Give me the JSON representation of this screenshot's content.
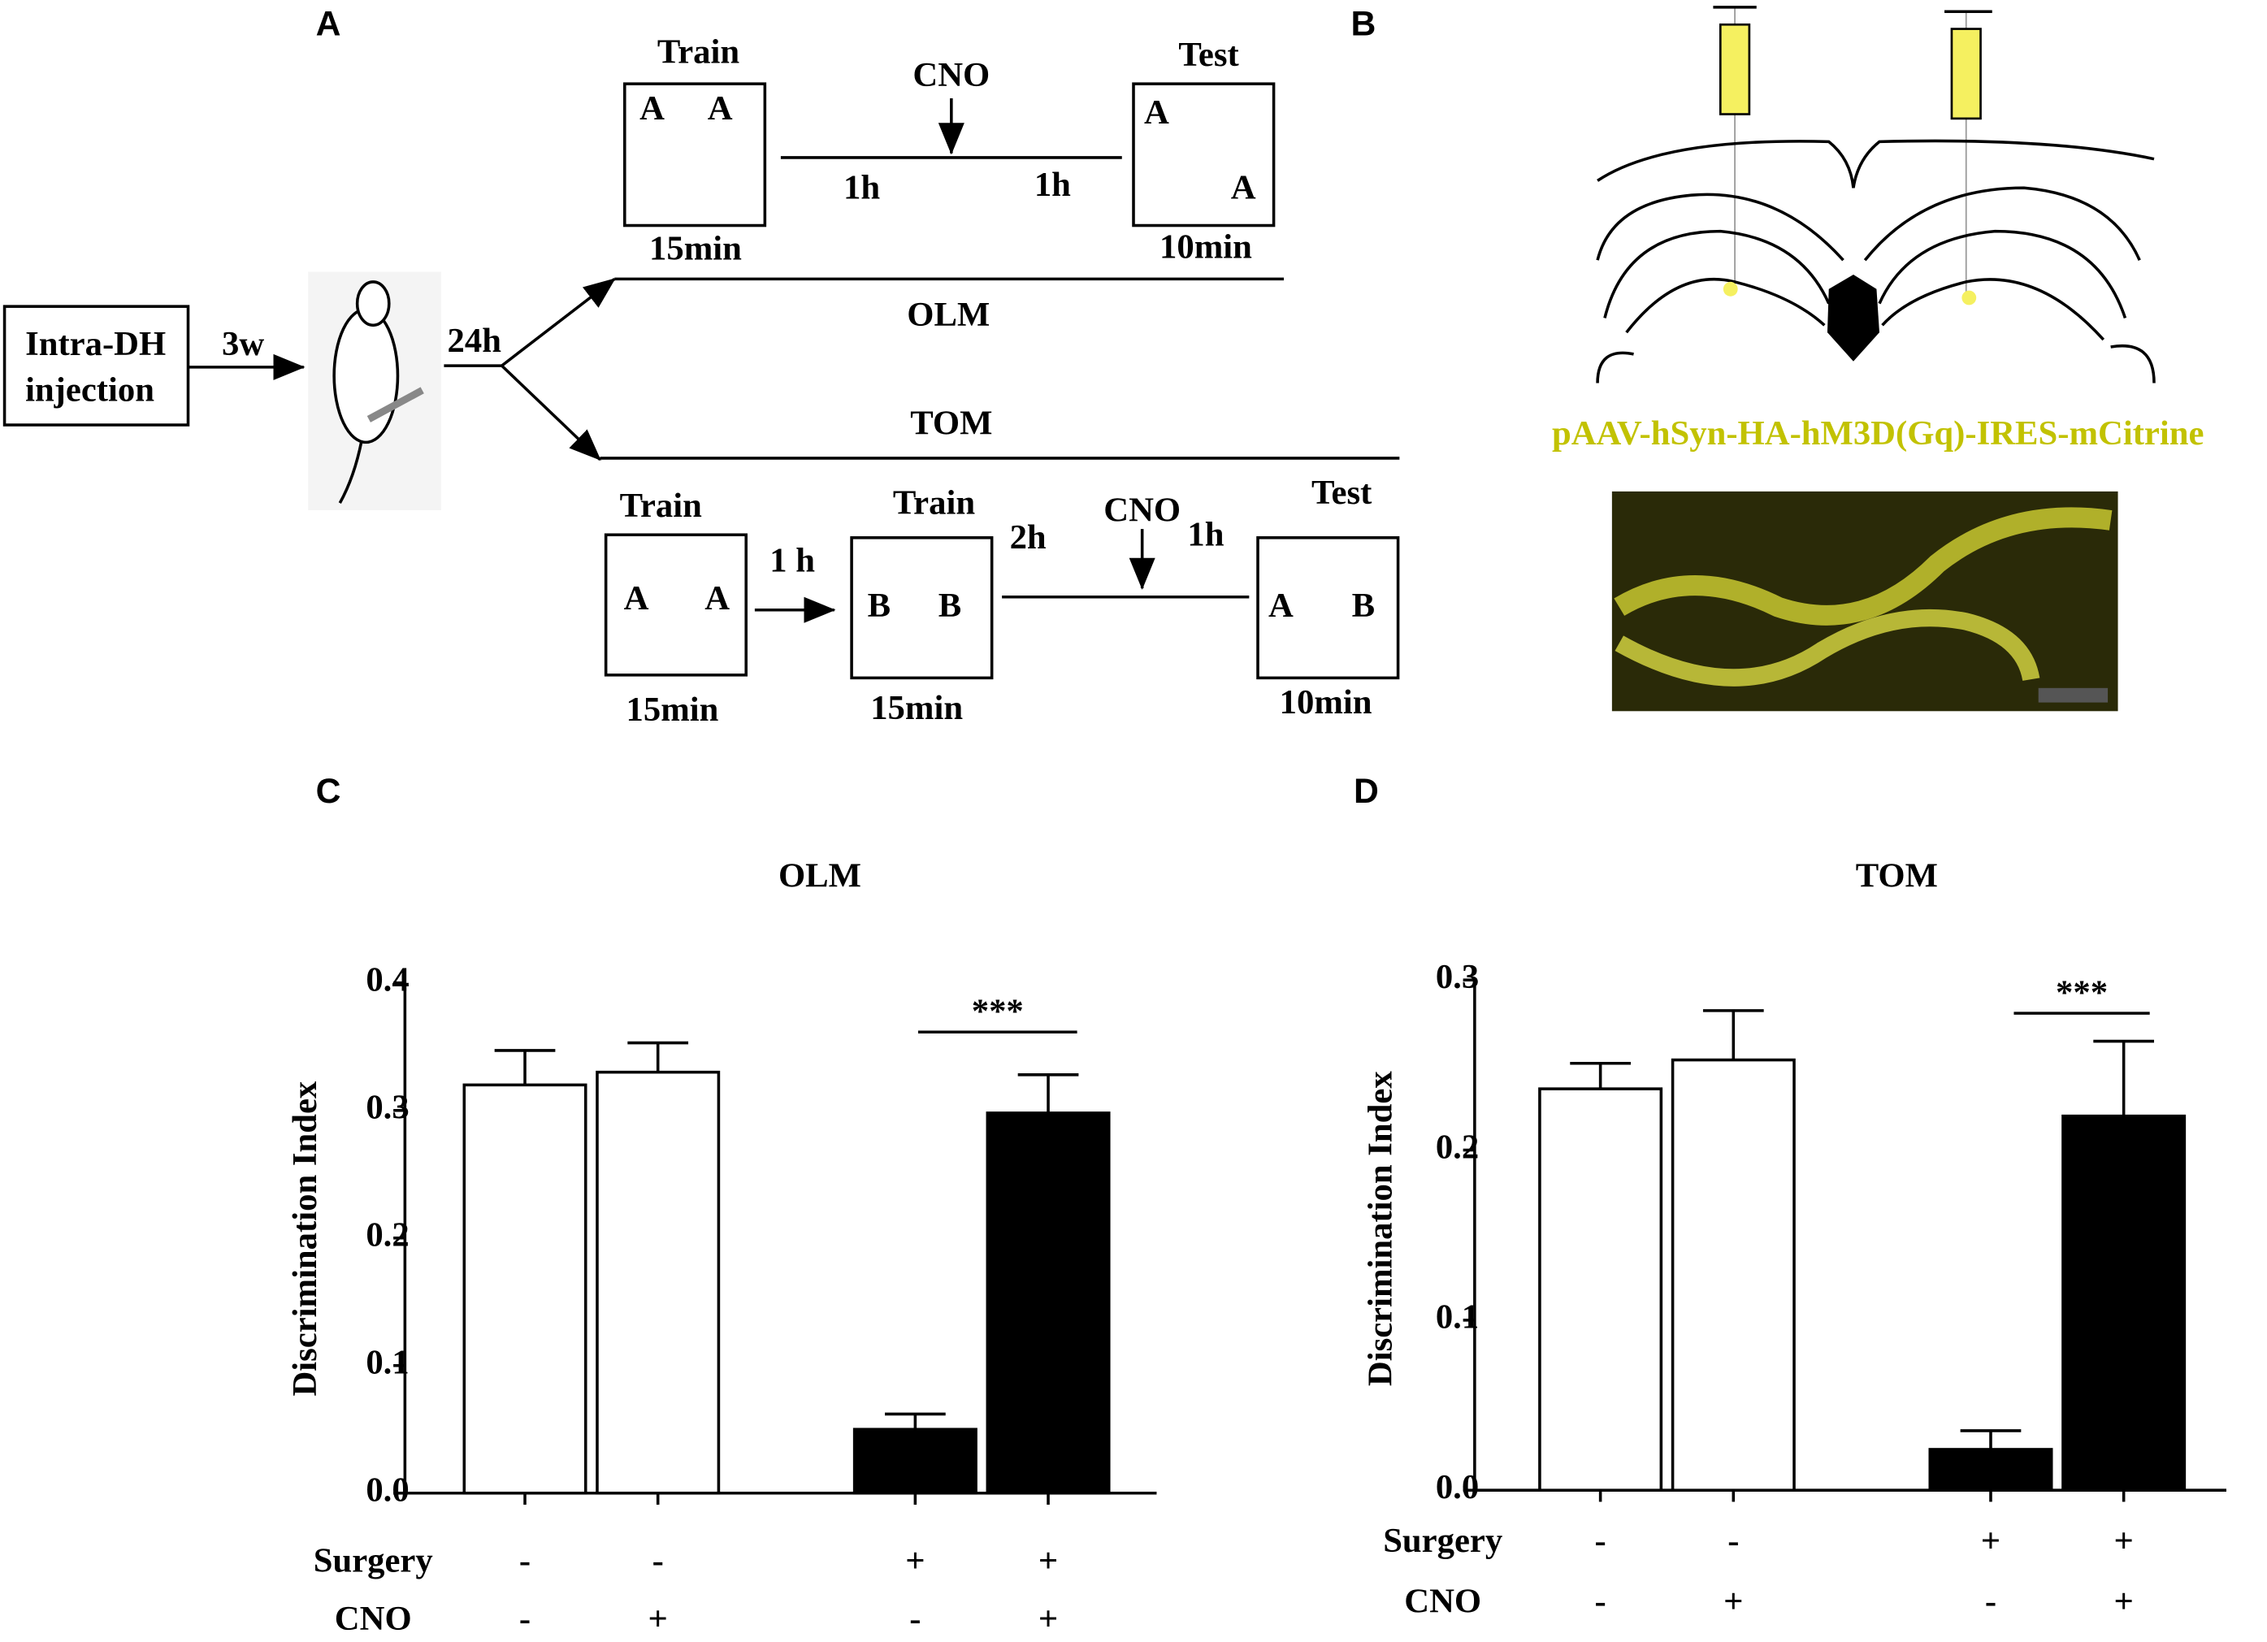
{
  "panel_labels": [
    "A",
    "B",
    "C",
    "D"
  ],
  "panel_a": {
    "injection": [
      "Intra-DH",
      "injection"
    ],
    "delay_1": "3w",
    "delay_2": "24h",
    "olm": {
      "name": "OLM",
      "train": {
        "title": "Train",
        "objects": [
          "A",
          "A"
        ],
        "duration": "15min"
      },
      "drug": "CNO",
      "intervals": [
        "1h",
        "1h"
      ],
      "test": {
        "title": "Test",
        "objects": [
          "A",
          "A"
        ],
        "duration": "10min"
      }
    },
    "tom": {
      "name": "TOM",
      "train_1": {
        "title": "Train",
        "objects": [
          "A",
          "A"
        ],
        "duration": "15min"
      },
      "interval_1": "1 h",
      "train_2": {
        "title": "Train",
        "objects": [
          "B",
          "B"
        ],
        "duration": "15min"
      },
      "interval_2": "2h",
      "drug": "CNO",
      "interval_3": "1h",
      "test": {
        "title": "Test",
        "objects": [
          "A",
          "B"
        ],
        "duration": "10min"
      }
    }
  },
  "panel_b": {
    "construct": "pAAV-hSyn-HA-hM3D(Gq)-IRES-mCitrine"
  },
  "chart_data": [
    {
      "type": "bar",
      "title": "OLM",
      "y_label": "Discrimination Index",
      "values": [
        0.32,
        0.33,
        0.05,
        0.298
      ],
      "errors": [
        0.027,
        0.023,
        0.012,
        0.03
      ],
      "colors": [
        "#ffffff",
        "#ffffff",
        "#000000",
        "#000000"
      ],
      "ylim": [
        0,
        0.4
      ],
      "yticks": [
        {
          "value": 0,
          "label": "0.0"
        },
        0.1,
        0.2,
        0.3,
        0.4
      ],
      "rows": [
        {
          "name": "Surgery",
          "values": [
            "-",
            "-",
            "+",
            "+"
          ]
        },
        {
          "name": "CNO",
          "values": [
            "-",
            "+",
            "-",
            "+"
          ]
        }
      ],
      "annotation": "***"
    },
    {
      "type": "bar",
      "title": "TOM",
      "y_label": "Discrimination Index",
      "values": [
        0.236,
        0.253,
        0.024,
        0.22
      ],
      "errors": [
        0.015,
        0.029,
        0.011,
        0.044
      ],
      "colors": [
        "#ffffff",
        "#ffffff",
        "#000000",
        "#000000"
      ],
      "ylim": [
        0,
        0.3
      ],
      "yticks": [
        {
          "value": 0,
          "label": "0.0"
        },
        0.1,
        0.2,
        0.3
      ],
      "rows": [
        {
          "name": "Surgery",
          "values": [
            "-",
            "-",
            "+",
            "+"
          ]
        },
        {
          "name": "CNO",
          "values": [
            "-",
            "+",
            "-",
            "+"
          ]
        }
      ],
      "annotation": "***"
    }
  ]
}
